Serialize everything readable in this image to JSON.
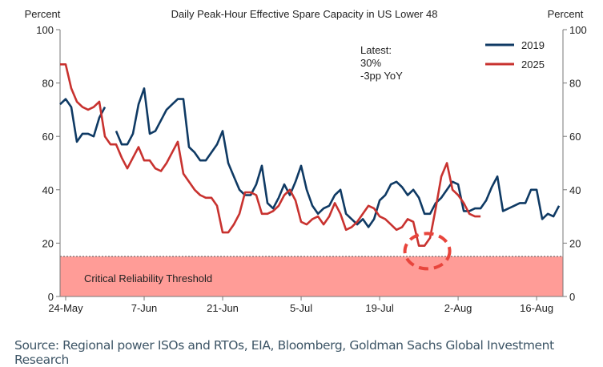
{
  "chart_data": {
    "type": "line",
    "title": "Daily Peak-Hour Effective Spare Capacity in US Lower 48",
    "ylabel_left": "Percent",
    "ylabel_right": "Percent",
    "ylim": [
      0,
      100
    ],
    "yticks": [
      "0",
      "20",
      "40",
      "60",
      "80",
      "100"
    ],
    "x_unit": "days since 24-May",
    "xlim": [
      -1,
      88.7
    ],
    "xticks": [
      {
        "day": 0,
        "label": "24-May"
      },
      {
        "day": 14,
        "label": "7-Jun"
      },
      {
        "day": 28,
        "label": "21-Jun"
      },
      {
        "day": 42,
        "label": "5-Jul"
      },
      {
        "day": 56,
        "label": "19-Jul"
      },
      {
        "day": 70,
        "label": "2-Aug"
      },
      {
        "day": 84,
        "label": "16-Aug"
      }
    ],
    "legend_position": "top-right",
    "series": [
      {
        "name": "2019",
        "color": "#0f3a64",
        "segments": [
          {
            "start_day": -1,
            "values": [
              72,
              74,
              71,
              58,
              61,
              61,
              60,
              67,
              71
            ]
          },
          {
            "start_day": 9,
            "values": [
              62,
              57,
              57,
              61,
              72,
              78,
              61,
              62,
              66,
              70,
              72,
              74,
              74,
              56,
              54,
              51,
              51,
              54,
              57,
              62,
              50,
              45,
              40,
              38,
              38,
              42,
              49,
              35,
              33,
              37,
              42,
              38,
              43,
              49,
              40,
              34,
              31,
              33,
              34,
              38,
              40,
              31,
              29,
              27,
              29,
              26,
              29,
              36,
              38,
              42,
              43,
              41,
              38,
              40,
              37,
              31,
              31,
              35,
              37,
              40,
              43,
              42,
              32,
              32,
              33,
              33,
              36,
              41,
              45,
              32,
              33,
              34,
              35,
              35,
              40,
              40,
              29,
              31,
              30,
              34
            ]
          }
        ]
      },
      {
        "name": "2025",
        "color": "#c8322f",
        "segments": [
          {
            "start_day": -1,
            "values": [
              87,
              87,
              78,
              73,
              71,
              70,
              71,
              73,
              60,
              57,
              57,
              52,
              48,
              52,
              56,
              51,
              51,
              48,
              47,
              50,
              54,
              58,
              46,
              43,
              40,
              38,
              37,
              37,
              34,
              24,
              24,
              27,
              31,
              39,
              39,
              38,
              31,
              31,
              32,
              34,
              38,
              40,
              36,
              28,
              27,
              29,
              30,
              27,
              30,
              35,
              31,
              25,
              26,
              28,
              31,
              34,
              33,
              30,
              29,
              27,
              25,
              26,
              29,
              28,
              19,
              19,
              22,
              33,
              45,
              50,
              40,
              38,
              35,
              31,
              30,
              30
            ]
          }
        ]
      }
    ],
    "threshold": {
      "value": 15,
      "label": "Critical Reliability Threshold",
      "color": "#ff9c97"
    },
    "annotation": {
      "lines": [
        "Latest:",
        "30%",
        "-3pp YoY"
      ]
    },
    "highlight": {
      "day": 64.5,
      "value": 17,
      "color": "#e8453c"
    }
  },
  "source": "Source: Regional power ISOs and RTOs, EIA, Bloomberg, Goldman Sachs Global Investment Research"
}
